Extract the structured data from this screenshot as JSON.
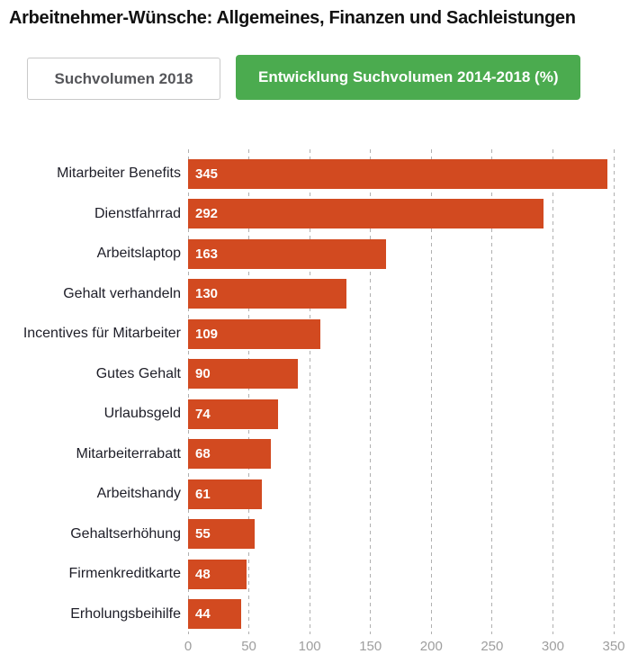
{
  "page": {
    "title": "Arbeitnehmer-Wünsche: Allgemeines, Finanzen und Sachleistungen"
  },
  "toolbar": {
    "inactive_button_label": "Suchvolumen 2018",
    "active_button_label": "Entwicklung Suchvolumen 2014-2018 (%)"
  },
  "colors": {
    "bar": "#d24a20",
    "active_button_bg": "#4bab4f",
    "active_button_text": "#ffffff",
    "inactive_button_text": "#55565a",
    "inactive_button_border": "#c9c9c9",
    "gridline": "#b0b0b0",
    "axis_label": "#9e9e9e",
    "category_label": "#1e1e28",
    "title_text": "#111111"
  },
  "chart_data": {
    "type": "bar",
    "orientation": "horizontal",
    "title": "Arbeitnehmer-Wünsche: Allgemeines, Finanzen und Sachleistungen",
    "series_name": "Entwicklung Suchvolumen 2014-2018 (%)",
    "categories": [
      "Mitarbeiter Benefits",
      "Dienstfahrrad",
      "Arbeitslaptop",
      "Gehalt verhandeln",
      "Incentives für Mitarbeiter",
      "Gutes Gehalt",
      "Urlaubsgeld",
      "Mitarbeiterrabatt",
      "Arbeitshandy",
      "Gehaltserhöhung",
      "Firmenkreditkarte",
      "Erholungsbeihilfe"
    ],
    "values": [
      345,
      292,
      163,
      130,
      109,
      90,
      74,
      68,
      61,
      55,
      48,
      44
    ],
    "xlabel": "",
    "ylabel": "",
    "xlim": [
      0,
      350
    ],
    "xticks": [
      0,
      50,
      100,
      150,
      200,
      250,
      300,
      350
    ],
    "grid": "vertical-dashed",
    "legend": "none",
    "value_labels": "inside-bar-left"
  }
}
